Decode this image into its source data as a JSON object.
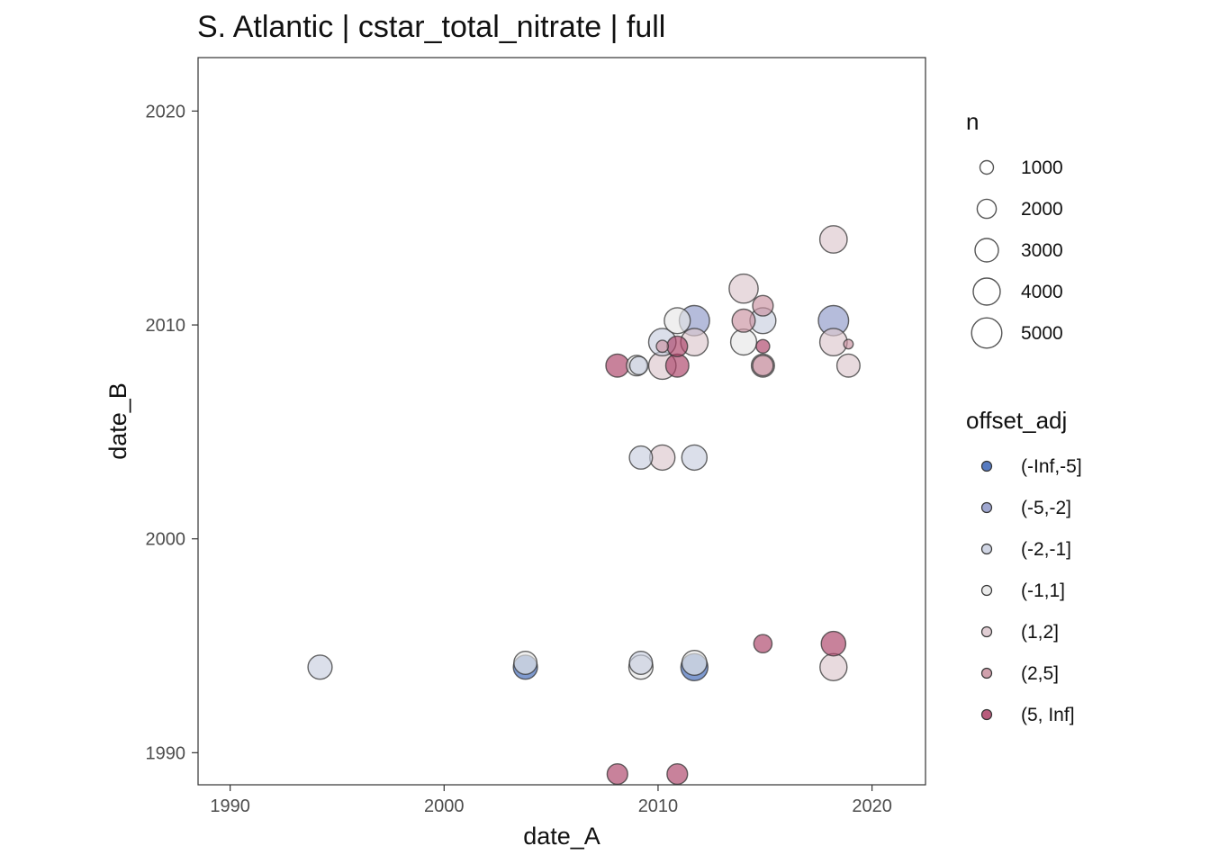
{
  "chart_data": {
    "type": "scatter",
    "title": "S. Atlantic | cstar_total_nitrate | full",
    "xlabel": "date_A",
    "ylabel": "date_B",
    "xlim": [
      1988.5,
      2022.5
    ],
    "ylim": [
      1988.5,
      2022.5
    ],
    "x_ticks": [
      1990,
      2000,
      2010,
      2020
    ],
    "y_ticks": [
      1990,
      2000,
      2010,
      2020
    ],
    "grid": false,
    "legend_position": "right",
    "size_legend": {
      "title": "n",
      "entries": [
        {
          "label": "1000",
          "value": 1000
        },
        {
          "label": "2000",
          "value": 2000
        },
        {
          "label": "3000",
          "value": 3000
        },
        {
          "label": "4000",
          "value": 4000
        },
        {
          "label": "5000",
          "value": 5000
        }
      ]
    },
    "color_legend": {
      "title": "offset_adj",
      "entries": [
        {
          "label": "(-Inf,-5]",
          "color": "#3a64b6"
        },
        {
          "label": "(-5,-2]",
          "color": "#8e98c8"
        },
        {
          "label": "(-2,-1]",
          "color": "#c8cedf"
        },
        {
          "label": "(-1,1]",
          "color": "#e6e6e6"
        },
        {
          "label": "(1,2]",
          "color": "#dcc6cc"
        },
        {
          "label": "(2,5]",
          "color": "#c9909f"
        },
        {
          "label": "(5, Inf]",
          "color": "#ab3f65"
        }
      ]
    },
    "points": [
      {
        "x": 1994.2,
        "y": 1994.0,
        "n": 3200,
        "category": "(-2,-1]"
      },
      {
        "x": 2003.8,
        "y": 1994.2,
        "n": 2900,
        "category": "(-1,1]"
      },
      {
        "x": 2003.8,
        "y": 1994.0,
        "n": 3200,
        "category": "(-Inf,-5]"
      },
      {
        "x": 2009.2,
        "y": 1994.2,
        "n": 2900,
        "category": "(-2,-1]"
      },
      {
        "x": 2009.2,
        "y": 1994.0,
        "n": 3200,
        "category": "(-1,1]"
      },
      {
        "x": 2011.7,
        "y": 1994.2,
        "n": 3400,
        "category": "(-1,1]"
      },
      {
        "x": 2011.7,
        "y": 1994.0,
        "n": 4000,
        "category": "(-Inf,-5]"
      },
      {
        "x": 2014.9,
        "y": 1995.1,
        "n": 1800,
        "category": "(5, Inf]"
      },
      {
        "x": 2018.2,
        "y": 1995.1,
        "n": 3300,
        "category": "(5, Inf]"
      },
      {
        "x": 2018.2,
        "y": 1994.0,
        "n": 4000,
        "category": "(1,2]"
      },
      {
        "x": 2008.1,
        "y": 1989.0,
        "n": 2300,
        "category": "(5, Inf]"
      },
      {
        "x": 2010.9,
        "y": 1989.0,
        "n": 2300,
        "category": "(5, Inf]"
      },
      {
        "x": 2009.2,
        "y": 2003.8,
        "n": 2900,
        "category": "(-2,-1]"
      },
      {
        "x": 2010.2,
        "y": 2003.8,
        "n": 3500,
        "category": "(1,2]"
      },
      {
        "x": 2011.7,
        "y": 2003.8,
        "n": 3500,
        "category": "(-2,-1]"
      },
      {
        "x": 2008.1,
        "y": 2008.1,
        "n": 2900,
        "category": "(5, Inf]"
      },
      {
        "x": 2009.0,
        "y": 2008.1,
        "n": 2300,
        "category": "(-1,1]"
      },
      {
        "x": 2009.1,
        "y": 2008.1,
        "n": 1800,
        "category": "(-2,-1]"
      },
      {
        "x": 2010.2,
        "y": 2008.1,
        "n": 4100,
        "category": "(1,2]"
      },
      {
        "x": 2010.2,
        "y": 2009.2,
        "n": 4100,
        "category": "(-2,-1]"
      },
      {
        "x": 2010.2,
        "y": 2009.0,
        "n": 800,
        "category": "(2,5]"
      },
      {
        "x": 2010.9,
        "y": 2008.1,
        "n": 2900,
        "category": "(5, Inf]"
      },
      {
        "x": 2010.9,
        "y": 2009.0,
        "n": 2300,
        "category": "(5, Inf]"
      },
      {
        "x": 2010.9,
        "y": 2010.2,
        "n": 3700,
        "category": "(-1,1]"
      },
      {
        "x": 2011.7,
        "y": 2009.2,
        "n": 4100,
        "category": "(1,2]"
      },
      {
        "x": 2011.7,
        "y": 2010.2,
        "n": 5000,
        "category": "(-5,-2]"
      },
      {
        "x": 2014.0,
        "y": 2011.7,
        "n": 4600,
        "category": "(1,2]"
      },
      {
        "x": 2014.0,
        "y": 2010.2,
        "n": 2900,
        "category": "(2,5]"
      },
      {
        "x": 2014.0,
        "y": 2009.2,
        "n": 3700,
        "category": "(-1,1]"
      },
      {
        "x": 2014.9,
        "y": 2010.9,
        "n": 2300,
        "category": "(2,5]"
      },
      {
        "x": 2014.9,
        "y": 2010.2,
        "n": 3700,
        "category": "(-2,-1]"
      },
      {
        "x": 2014.9,
        "y": 2009.0,
        "n": 1000,
        "category": "(5, Inf]"
      },
      {
        "x": 2014.9,
        "y": 2008.1,
        "n": 2900,
        "category": "(1,2]"
      },
      {
        "x": 2014.9,
        "y": 2008.1,
        "n": 2300,
        "category": "(2,5]"
      },
      {
        "x": 2018.2,
        "y": 2014.0,
        "n": 4100,
        "category": "(1,2]"
      },
      {
        "x": 2018.2,
        "y": 2010.2,
        "n": 5000,
        "category": "(-5,-2]"
      },
      {
        "x": 2018.2,
        "y": 2009.2,
        "n": 4100,
        "category": "(1,2]"
      },
      {
        "x": 2018.9,
        "y": 2009.1,
        "n": 500,
        "category": "(2,5]"
      },
      {
        "x": 2018.9,
        "y": 2008.1,
        "n": 2900,
        "category": "(1,2]"
      }
    ]
  }
}
